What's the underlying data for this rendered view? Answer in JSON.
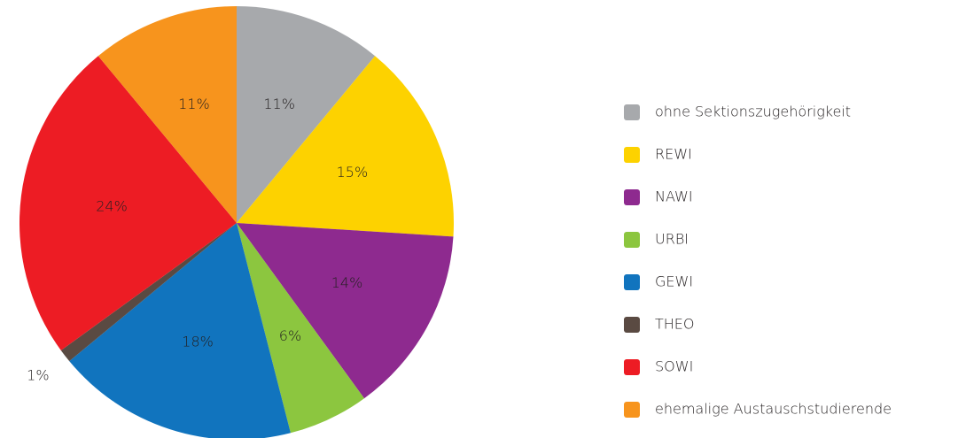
{
  "chart_data": {
    "type": "pie",
    "categories": [
      "ohne Sektionszugehörigkeit",
      "REWI",
      "NAWI",
      "URBI",
      "GEWI",
      "THEO",
      "SOWI",
      "ehemalige Austauschstudierende"
    ],
    "values": [
      11,
      15,
      14,
      6,
      18,
      1,
      24,
      11
    ],
    "value_labels": [
      "11%",
      "15%",
      "14%",
      "6%",
      "18%",
      "1%",
      "24%",
      "11%"
    ],
    "colors": [
      "#a7a9ac",
      "#fdd200",
      "#8e2a8f",
      "#8cc63f",
      "#1174be",
      "#5a4a42",
      "#ed1c24",
      "#f7941d"
    ],
    "legend": "right"
  }
}
